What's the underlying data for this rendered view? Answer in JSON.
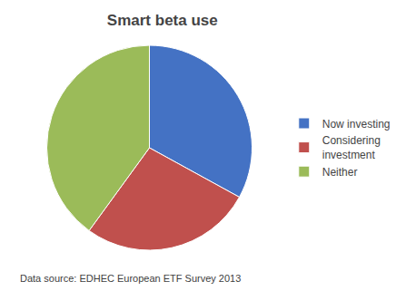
{
  "chart_data": {
    "type": "pie",
    "title": "Smart beta use",
    "categories": [
      "Now investing",
      "Considering\ninvestment",
      "Neither"
    ],
    "values": [
      33,
      27,
      40
    ],
    "colors": [
      "#4472C4",
      "#C0504D",
      "#9BBB59"
    ],
    "legend": "right",
    "annotations": [
      "Data source: EDHEC European ETF Survey 2013"
    ]
  }
}
